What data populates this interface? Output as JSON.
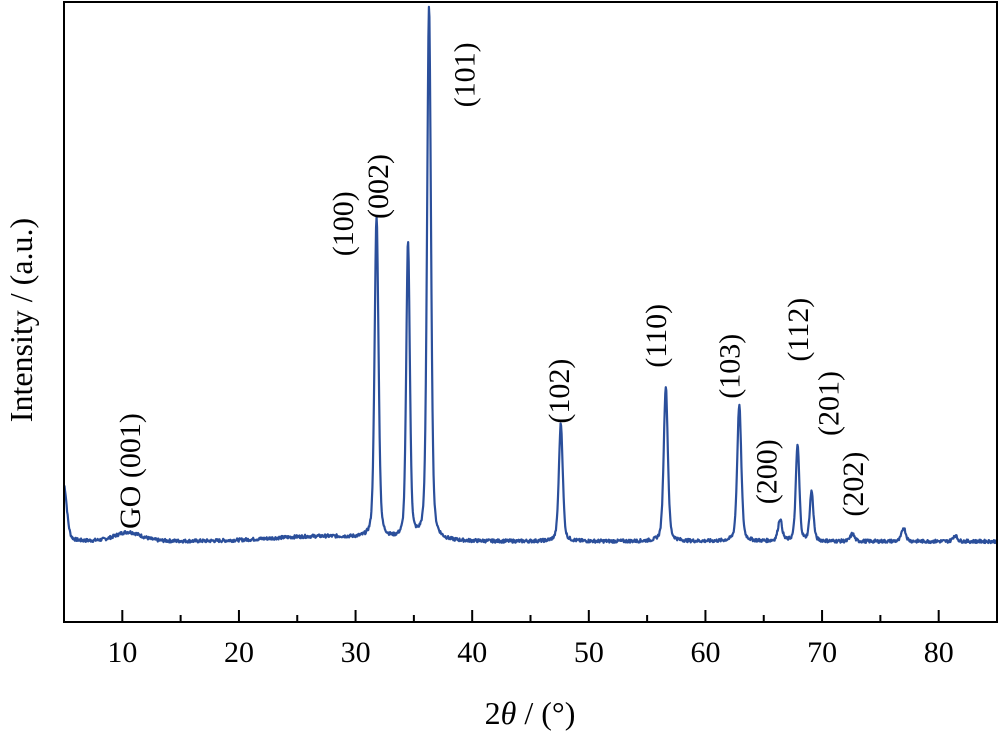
{
  "chart_data": {
    "type": "line",
    "xlabel_prefix": "2",
    "xlabel_symbol": "θ",
    "xlabel_suffix": " / (°)",
    "ylabel": "Intensity / (a.u.)",
    "xlim": [
      5,
      85
    ],
    "ylim": [
      0,
      100
    ],
    "y_ticks_shown": false,
    "x_ticks": [
      10,
      20,
      30,
      40,
      50,
      60,
      70,
      80
    ],
    "x_tick_labels": [
      "10",
      "20",
      "30",
      "40",
      "50",
      "60",
      "70",
      "80"
    ],
    "color": "#2b4f9b",
    "baseline": 13,
    "peaks": [
      {
        "x": 5.0,
        "height": 9,
        "width": 0.35
      },
      {
        "x": 10.5,
        "height": 1.5,
        "width": 1.6
      },
      {
        "x": 31.8,
        "height": 52,
        "width": 0.24
      },
      {
        "x": 34.5,
        "height": 48,
        "width": 0.22
      },
      {
        "x": 36.3,
        "height": 86,
        "width": 0.24
      },
      {
        "x": 47.6,
        "height": 19,
        "width": 0.24
      },
      {
        "x": 56.6,
        "height": 25,
        "width": 0.25
      },
      {
        "x": 62.9,
        "height": 22,
        "width": 0.25
      },
      {
        "x": 66.4,
        "height": 3.5,
        "width": 0.25
      },
      {
        "x": 67.9,
        "height": 15.5,
        "width": 0.22
      },
      {
        "x": 69.1,
        "height": 8,
        "width": 0.22
      },
      {
        "x": 72.6,
        "height": 1.2,
        "width": 0.25
      },
      {
        "x": 77.0,
        "height": 2.2,
        "width": 0.25
      },
      {
        "x": 81.4,
        "height": 1.0,
        "width": 0.25
      }
    ],
    "annotations": [
      {
        "text": "GO (001)",
        "x": 11.5,
        "y": 15
      },
      {
        "text": "(100)",
        "x": 29.8,
        "y": 59
      },
      {
        "text": "(002)",
        "x": 32.8,
        "y": 65
      },
      {
        "text": "(101)",
        "x": 40.2,
        "y": 83
      },
      {
        "text": "(102)",
        "x": 48.3,
        "y": 32
      },
      {
        "text": "(110)",
        "x": 56.6,
        "y": 41
      },
      {
        "text": "(103)",
        "x": 62.9,
        "y": 36
      },
      {
        "text": "(200)",
        "x": 66.1,
        "y": 19
      },
      {
        "text": "(112)",
        "x": 68.8,
        "y": 42
      },
      {
        "text": "(201)",
        "x": 71.4,
        "y": 30
      },
      {
        "text": "(202)",
        "x": 73.5,
        "y": 17
      }
    ]
  }
}
